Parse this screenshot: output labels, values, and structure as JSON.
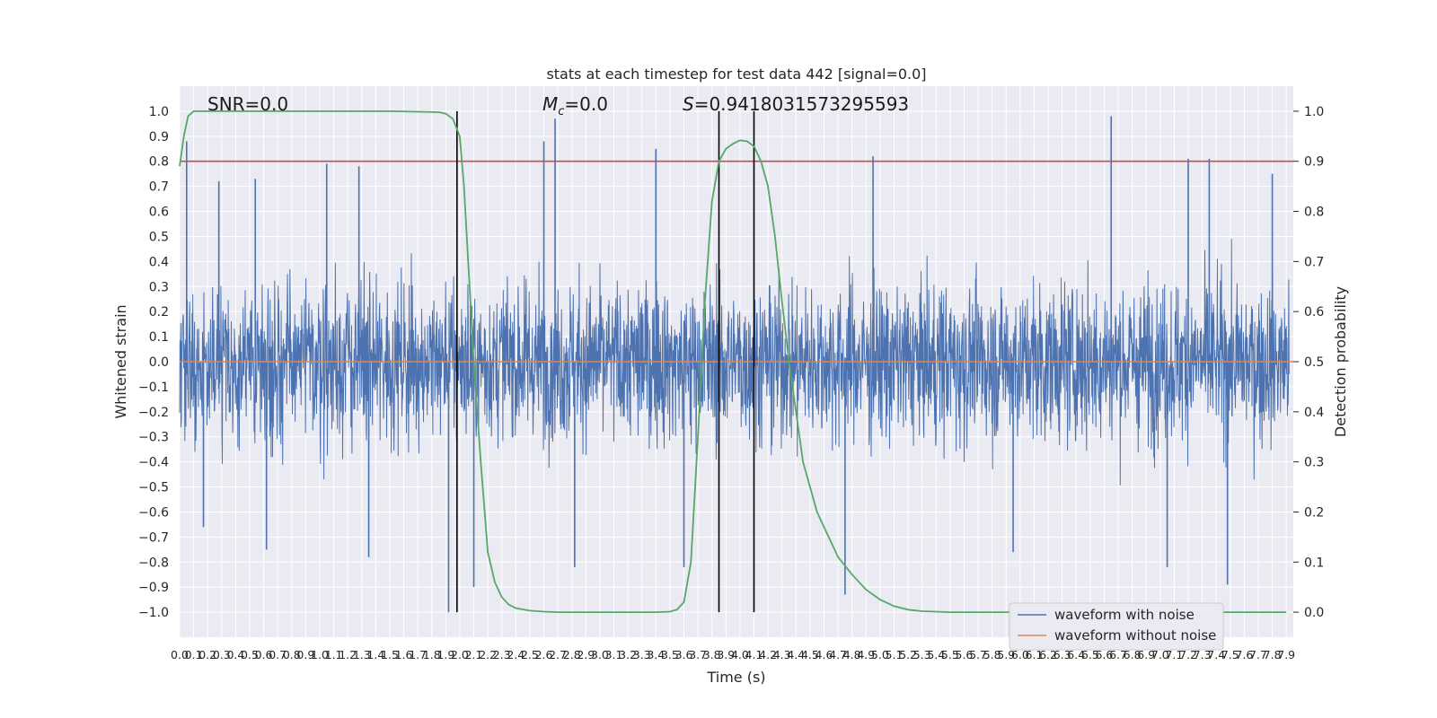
{
  "chart_data": {
    "type": "line",
    "title": "stats at each timestep for test data 442 [signal=0.0]",
    "xlabel": "Time (s)",
    "ylabel": "Whitened strain",
    "y2label": "Detection probability",
    "xlim": [
      0.0,
      7.95
    ],
    "ylim": [
      -1.1,
      1.1
    ],
    "y2lim": [
      -0.05,
      1.05
    ],
    "x_ticks": [
      "0.0",
      "0.1",
      "0.2",
      "0.3",
      "0.4",
      "0.5",
      "0.6",
      "0.7",
      "0.8",
      "0.9",
      "1.0",
      "1.1",
      "1.2",
      "1.3",
      "1.4",
      "1.5",
      "1.6",
      "1.7",
      "1.8",
      "1.9",
      "2.0",
      "2.1",
      "2.2",
      "2.3",
      "2.4",
      "2.5",
      "2.6",
      "2.7",
      "2.8",
      "2.9",
      "3.0",
      "3.1",
      "3.2",
      "3.3",
      "3.4",
      "3.5",
      "3.6",
      "3.7",
      "3.8",
      "3.9",
      "4.0",
      "4.1",
      "4.2",
      "4.3",
      "4.4",
      "4.5",
      "4.6",
      "4.7",
      "4.8",
      "4.9",
      "5.0",
      "5.1",
      "5.2",
      "5.3",
      "5.4",
      "5.5",
      "5.6",
      "5.7",
      "5.8",
      "5.9",
      "6.0",
      "6.1",
      "6.2",
      "6.3",
      "6.4",
      "6.5",
      "6.6",
      "6.7",
      "6.8",
      "6.9",
      "7.0",
      "7.1",
      "7.2",
      "7.3",
      "7.4",
      "7.5",
      "7.6",
      "7.7",
      "7.8",
      "7.9"
    ],
    "y_ticks": [
      "1.0",
      "0.9",
      "0.8",
      "0.7",
      "0.6",
      "0.5",
      "0.4",
      "0.3",
      "0.2",
      "0.1",
      "0.0",
      "−0.1",
      "−0.2",
      "−0.3",
      "−0.4",
      "−0.5",
      "−0.6",
      "−0.7",
      "−0.8",
      "−0.9",
      "−1.0"
    ],
    "y2_ticks": [
      "1.0",
      "0.9",
      "0.8",
      "0.7",
      "0.6",
      "0.5",
      "0.4",
      "0.3",
      "0.2",
      "0.1",
      "0.0"
    ],
    "annotations": {
      "snr": "SNR=0.0",
      "mc_symbol": "M",
      "mc_sub": "c",
      "mc_value": "=0.0",
      "s_symbol": "S",
      "s_value": "=0.9418031573295593"
    },
    "threshold": 0.9,
    "event_lines_x": [
      1.98,
      3.85,
      4.1
    ],
    "noise_spikes": [
      {
        "x": 0.05,
        "y": 0.88
      },
      {
        "x": 0.17,
        "y": -0.66
      },
      {
        "x": 0.28,
        "y": 0.72
      },
      {
        "x": 0.54,
        "y": 0.73
      },
      {
        "x": 0.62,
        "y": -0.75
      },
      {
        "x": 1.05,
        "y": 0.79
      },
      {
        "x": 1.28,
        "y": 0.78
      },
      {
        "x": 1.35,
        "y": -0.78
      },
      {
        "x": 1.92,
        "y": -1.0
      },
      {
        "x": 2.1,
        "y": -0.9
      },
      {
        "x": 2.6,
        "y": 0.88
      },
      {
        "x": 2.68,
        "y": 0.97
      },
      {
        "x": 2.82,
        "y": -0.82
      },
      {
        "x": 3.4,
        "y": 0.85
      },
      {
        "x": 3.6,
        "y": -0.82
      },
      {
        "x": 4.75,
        "y": -0.93
      },
      {
        "x": 4.95,
        "y": 0.82
      },
      {
        "x": 5.95,
        "y": -0.76
      },
      {
        "x": 6.65,
        "y": 0.98
      },
      {
        "x": 7.05,
        "y": -0.82
      },
      {
        "x": 7.2,
        "y": 0.81
      },
      {
        "x": 7.35,
        "y": 0.81
      },
      {
        "x": 7.48,
        "y": -0.89
      },
      {
        "x": 7.8,
        "y": 0.75
      }
    ],
    "series": [
      {
        "name": "waveform with noise",
        "color": "#4c72b0"
      },
      {
        "name": "waveform without noise",
        "color": "#dd8452",
        "constant": 0.0
      },
      {
        "color": "#55a868",
        "axis": "right",
        "x": [
          0.0,
          0.03,
          0.06,
          0.1,
          0.15,
          0.2,
          0.3,
          0.5,
          1.0,
          1.5,
          1.85,
          1.9,
          1.95,
          2.0,
          2.03,
          2.06,
          2.1,
          2.15,
          2.2,
          2.25,
          2.3,
          2.35,
          2.4,
          2.5,
          2.6,
          2.7,
          2.8,
          3.0,
          3.2,
          3.4,
          3.5,
          3.55,
          3.6,
          3.65,
          3.7,
          3.75,
          3.8,
          3.85,
          3.9,
          3.95,
          4.0,
          4.05,
          4.1,
          4.15,
          4.2,
          4.25,
          4.3,
          4.35,
          4.4,
          4.45,
          4.5,
          4.55,
          4.6,
          4.65,
          4.7,
          4.8,
          4.9,
          5.0,
          5.1,
          5.2,
          5.3,
          5.4,
          5.5,
          6.0,
          7.0,
          7.9
        ],
        "y": [
          0.89,
          0.95,
          0.99,
          1.0,
          1.0,
          1.0,
          1.0,
          1.0,
          1.0,
          1.0,
          0.998,
          0.995,
          0.985,
          0.95,
          0.85,
          0.7,
          0.5,
          0.3,
          0.12,
          0.06,
          0.03,
          0.015,
          0.008,
          0.003,
          0.001,
          0.0,
          0.0,
          0.0,
          0.0,
          0.0,
          0.001,
          0.005,
          0.02,
          0.1,
          0.35,
          0.62,
          0.82,
          0.9,
          0.925,
          0.935,
          0.942,
          0.94,
          0.93,
          0.9,
          0.85,
          0.75,
          0.62,
          0.5,
          0.4,
          0.3,
          0.25,
          0.2,
          0.17,
          0.14,
          0.11,
          0.075,
          0.045,
          0.025,
          0.012,
          0.005,
          0.002,
          0.001,
          0.0,
          0.0,
          0.0,
          0.0
        ]
      }
    ],
    "legend_loc": "lower right",
    "grid": true
  }
}
